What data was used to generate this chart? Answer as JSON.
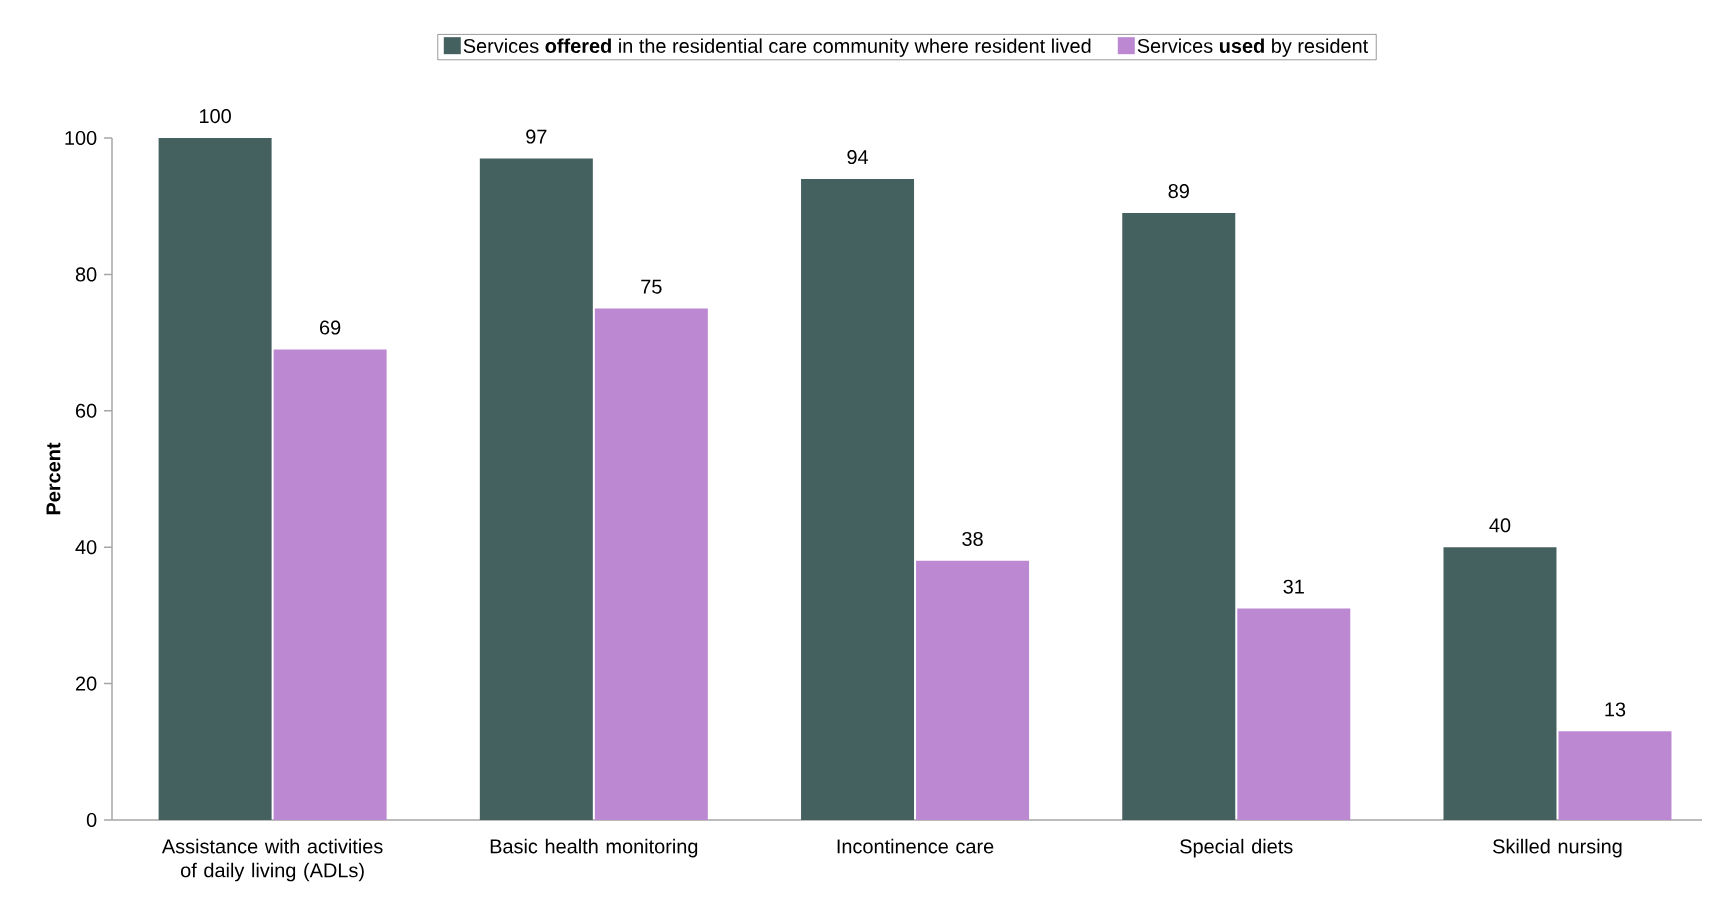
{
  "chart_data": {
    "type": "bar",
    "ylabel": "Percent",
    "categories": [
      "Assistance with activities of daily living (ADLs)",
      "Basic health monitoring",
      "Incontinence care",
      "Special diets",
      "Skilled nursing"
    ],
    "series": [
      {
        "name": "Services **offered** in the residential care community where resident lived",
        "color": "#44615f",
        "values": [
          100,
          97,
          94,
          89,
          40
        ]
      },
      {
        "name": "Services **used** by resident",
        "color": "#bd88d2",
        "values": [
          69,
          75,
          38,
          31,
          13
        ]
      }
    ],
    "ylim": [
      0,
      100
    ],
    "yticks": [
      0,
      20,
      40,
      60,
      80,
      100
    ],
    "data_labels": true,
    "legend": "top",
    "grid": false
  }
}
